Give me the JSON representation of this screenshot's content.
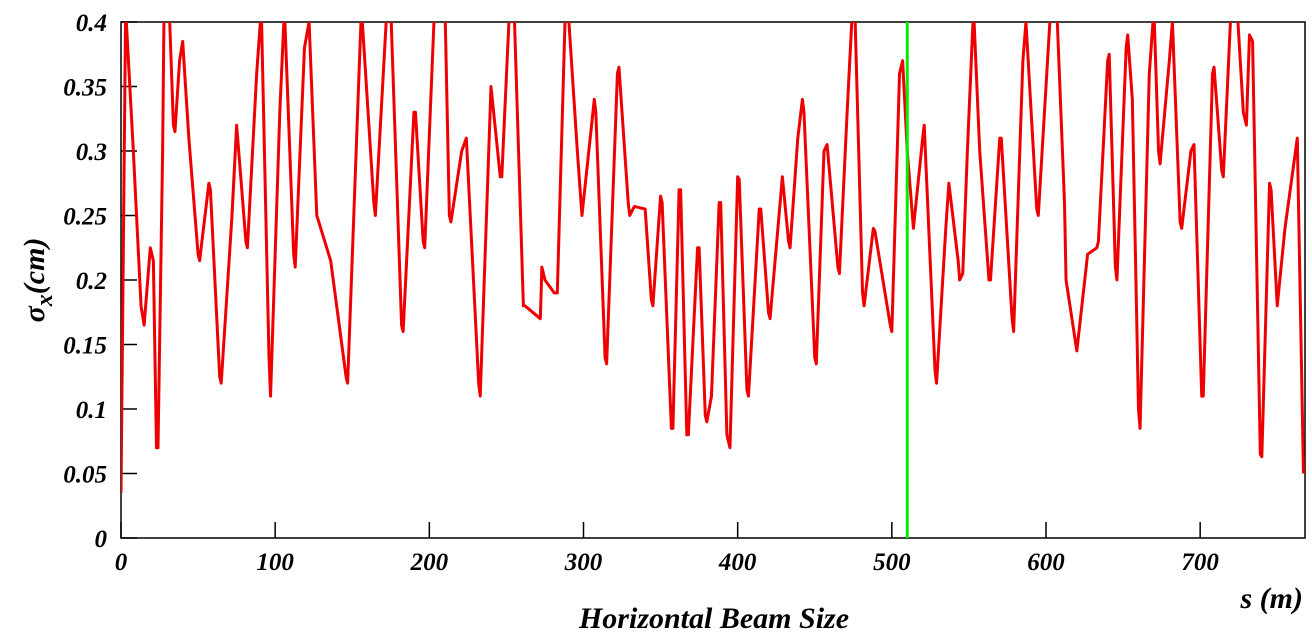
{
  "chart_data": {
    "type": "line",
    "title": "Horizontal Beam Size",
    "xlabel": "s (m)",
    "ylabel_parts": [
      "σ",
      "x",
      "(cm)"
    ],
    "xlim": [
      0,
      768
    ],
    "ylim": [
      0,
      0.4
    ],
    "xticks": [
      0,
      100,
      200,
      300,
      400,
      500,
      600,
      700
    ],
    "yticks": [
      0,
      0.05,
      0.1,
      0.15,
      0.2,
      0.25,
      0.3,
      0.35,
      0.4
    ],
    "vline": {
      "x": 510,
      "color": "#00ee00"
    },
    "x": [
      0,
      3,
      8,
      13,
      15,
      19,
      21,
      23,
      24,
      27,
      28,
      31,
      34,
      35,
      38,
      40,
      44,
      50,
      51,
      57,
      58,
      64,
      65,
      72,
      75,
      81,
      82,
      88,
      91,
      96,
      97,
      103,
      106,
      112,
      113,
      119,
      122,
      127,
      136,
      146,
      147,
      155,
      156,
      164,
      165,
      172,
      175,
      182,
      183,
      190,
      191,
      196,
      197,
      203,
      206,
      210,
      213,
      214,
      221,
      224,
      232,
      233,
      240,
      246,
      247,
      252,
      255,
      261,
      262,
      272,
      273,
      275,
      281,
      283,
      288,
      290,
      296,
      299,
      307,
      308,
      314,
      315,
      322,
      323,
      329,
      330,
      333,
      340,
      344,
      345,
      350,
      351,
      357,
      358,
      362,
      363,
      367,
      368,
      374,
      375,
      379,
      380,
      383,
      388,
      389,
      393,
      395,
      400,
      401,
      406,
      407,
      414,
      415,
      420,
      421,
      429,
      433,
      434,
      439,
      442,
      443,
      450,
      451,
      456,
      458,
      465,
      466,
      471,
      474,
      476,
      481,
      482,
      488,
      489,
      499,
      500,
      505,
      507,
      510,
      514,
      520,
      521,
      528,
      529,
      535,
      537,
      543,
      544,
      546,
      549,
      553,
      557,
      563,
      564,
      570,
      571,
      578,
      579,
      585,
      587,
      594,
      595,
      603,
      607,
      612,
      613,
      620,
      627,
      633,
      634,
      640,
      641,
      645,
      646,
      652,
      653,
      656,
      660,
      661,
      667,
      670,
      673,
      674,
      680,
      682,
      687,
      688,
      694,
      696,
      701,
      702,
      708,
      709,
      714,
      715,
      720,
      724,
      728,
      730,
      732,
      734,
      739,
      740,
      745,
      746,
      750,
      755,
      763,
      767
    ],
    "series": [
      {
        "color": "#ee0000",
        "values": [
          0.035,
          0.41,
          0.3,
          0.18,
          0.165,
          0.225,
          0.215,
          0.07,
          0.07,
          0.3,
          0.42,
          0.42,
          0.32,
          0.315,
          0.37,
          0.385,
          0.31,
          0.22,
          0.215,
          0.275,
          0.27,
          0.125,
          0.12,
          0.25,
          0.32,
          0.23,
          0.225,
          0.36,
          0.41,
          0.14,
          0.11,
          0.33,
          0.41,
          0.22,
          0.21,
          0.38,
          0.4,
          0.25,
          0.215,
          0.125,
          0.12,
          0.38,
          0.41,
          0.26,
          0.25,
          0.4,
          0.41,
          0.165,
          0.16,
          0.33,
          0.33,
          0.23,
          0.225,
          0.4,
          0.42,
          0.42,
          0.25,
          0.245,
          0.3,
          0.31,
          0.12,
          0.11,
          0.35,
          0.28,
          0.28,
          0.41,
          0.41,
          0.18,
          0.18,
          0.17,
          0.21,
          0.2,
          0.19,
          0.19,
          0.4,
          0.41,
          0.3,
          0.25,
          0.34,
          0.33,
          0.14,
          0.135,
          0.36,
          0.365,
          0.26,
          0.25,
          0.257,
          0.255,
          0.185,
          0.18,
          0.265,
          0.26,
          0.085,
          0.085,
          0.27,
          0.27,
          0.08,
          0.08,
          0.225,
          0.225,
          0.095,
          0.09,
          0.11,
          0.26,
          0.26,
          0.08,
          0.07,
          0.28,
          0.278,
          0.115,
          0.11,
          0.255,
          0.255,
          0.175,
          0.17,
          0.28,
          0.23,
          0.225,
          0.31,
          0.34,
          0.33,
          0.14,
          0.135,
          0.3,
          0.305,
          0.21,
          0.205,
          0.33,
          0.4,
          0.41,
          0.19,
          0.18,
          0.24,
          0.238,
          0.165,
          0.16,
          0.36,
          0.37,
          0.3,
          0.24,
          0.31,
          0.32,
          0.13,
          0.12,
          0.24,
          0.275,
          0.215,
          0.2,
          0.205,
          0.3,
          0.41,
          0.3,
          0.2,
          0.2,
          0.31,
          0.31,
          0.17,
          0.16,
          0.37,
          0.4,
          0.255,
          0.25,
          0.41,
          0.41,
          0.26,
          0.2,
          0.145,
          0.22,
          0.225,
          0.23,
          0.37,
          0.375,
          0.21,
          0.2,
          0.38,
          0.39,
          0.34,
          0.1,
          0.085,
          0.36,
          0.41,
          0.3,
          0.29,
          0.37,
          0.4,
          0.245,
          0.24,
          0.3,
          0.305,
          0.11,
          0.11,
          0.36,
          0.365,
          0.285,
          0.28,
          0.41,
          0.41,
          0.33,
          0.32,
          0.39,
          0.385,
          0.065,
          0.063,
          0.275,
          0.27,
          0.18,
          0.24,
          0.31,
          0.05
        ]
      }
    ]
  }
}
